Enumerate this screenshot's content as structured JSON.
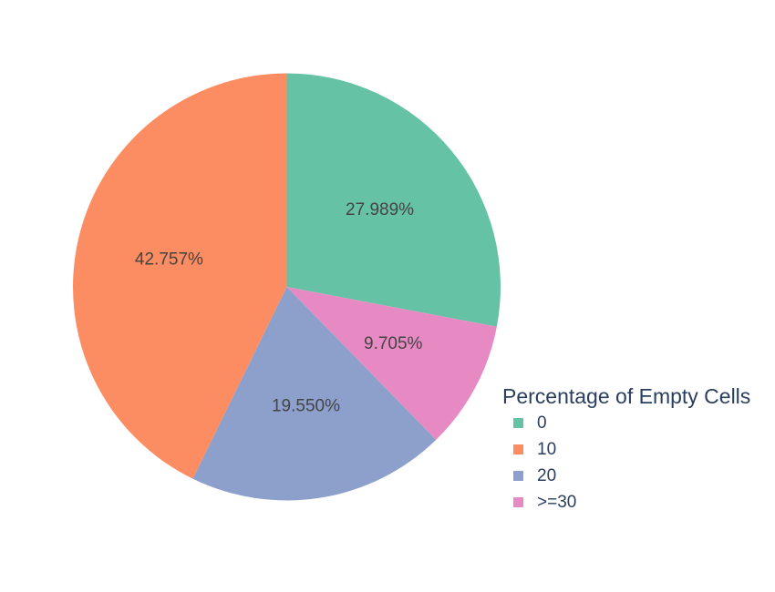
{
  "chart_data": {
    "type": "pie",
    "title": "",
    "legend": {
      "title": "Percentage of Empty Cells",
      "placement": "right"
    },
    "categories": [
      "0",
      "10",
      "20",
      ">=30"
    ],
    "values": [
      27.989,
      42.757,
      19.55,
      9.705
    ],
    "labels": [
      "27.989%",
      "42.757%",
      "19.550%",
      "9.705%"
    ],
    "colors": [
      "#66c2a5",
      "#fc8d62",
      "#8da0cb",
      "#e78ac3"
    ],
    "slice_order": [
      0,
      3,
      2,
      1
    ],
    "direction": "clockwise",
    "start_angle": "12 o'clock"
  }
}
